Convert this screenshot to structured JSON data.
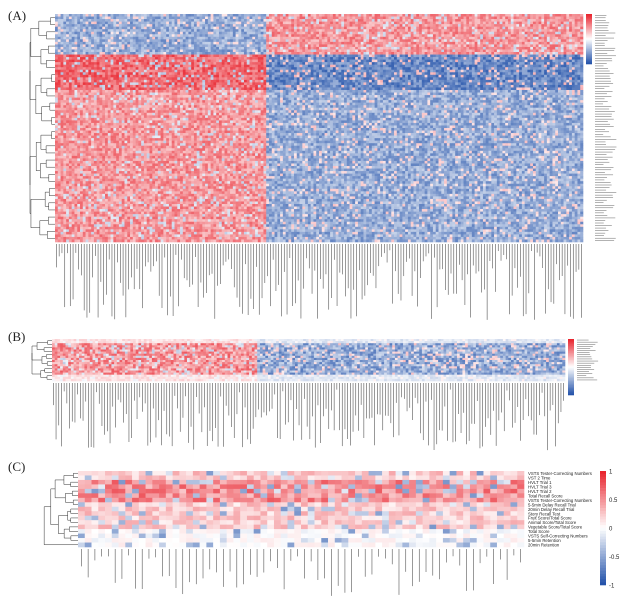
{
  "chart_data": [
    {
      "type": "heatmap",
      "panel_label": "(A)",
      "rows": 90,
      "cols": 190,
      "colorbar_ticks": [
        "",
        "",
        "",
        ""
      ],
      "colorscale": [
        "#1f4fa8",
        "#ffffff",
        "#e8202a"
      ],
      "value_range": [
        -1,
        1
      ],
      "pattern": "left block positively correlated with most rows, right block negatively correlated; top rows reversed"
    },
    {
      "type": "heatmap",
      "panel_label": "(B)",
      "rows": 20,
      "cols": 190,
      "colorbar_ticks": [
        "",
        "",
        "",
        ""
      ],
      "colorscale": [
        "#1f4fa8",
        "#ffffff",
        "#e8202a"
      ],
      "value_range": [
        -1,
        1
      ]
    },
    {
      "type": "heatmap",
      "panel_label": "(C)",
      "rows": 17,
      "cols": 66,
      "row_labels": [
        "VSTS Tester-Correcting Numbers",
        "VST 2 Time",
        "HVLT Trial 1",
        "HVLT Trial 3",
        "HVLT Trial 2",
        "Total Recall Score",
        "VSTS Tester-Correcting Numbers",
        "5-5min Delay Recall Trial",
        "20min Delay Recall Trial",
        "Story Recall Test",
        "Fruit Score/Total Score",
        "Animal Score/Total Score",
        "Vegetable Score/Total Score",
        "Total Score",
        "VSTS Self-Correcting Numbers",
        "5-5min Retention",
        "20min Retention"
      ],
      "colorbar_ticks": [
        "1",
        "0.5",
        "0",
        "-0.5",
        "-1"
      ],
      "colorscale": [
        "#1f4fa8",
        "#ffffff",
        "#e8202a"
      ],
      "value_range": [
        -1,
        1
      ]
    }
  ]
}
